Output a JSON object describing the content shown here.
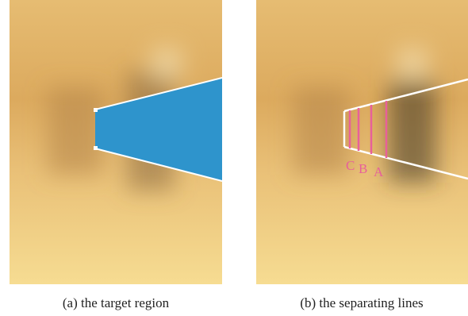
{
  "panels": [
    {
      "caption": "(a) the target region"
    },
    {
      "caption": "(b) the separating lines",
      "line_labels": [
        "C",
        "B",
        "A"
      ]
    }
  ]
}
